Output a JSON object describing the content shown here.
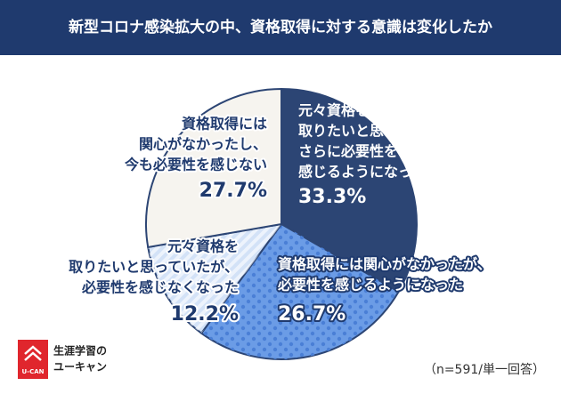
{
  "chart_data": {
    "type": "pie",
    "title": "新型コロナ感染拡大の中、資格取得に対する意識は変化したか",
    "categories": [
      [
        "元々資格を",
        "取りたいと思っていたが、",
        "さらに必要性を",
        "感じるようになった"
      ],
      [
        "資格取得には関心がなかったが、",
        "必要性を感じるようになった"
      ],
      [
        "元々資格を",
        "取りたいと思っていたが、",
        "必要性を感じなくなった"
      ],
      [
        "資格取得には",
        "関心がなかったし、",
        "今も必要性を感じない"
      ]
    ],
    "values": [
      33.3,
      26.7,
      12.2,
      27.7
    ],
    "value_labels": [
      "33.3%",
      "26.7%",
      "12.2%",
      "27.7%"
    ],
    "colors": [
      "#2c4574",
      "#6b9ce6",
      "#d3e2f7",
      "#f6f4ef"
    ],
    "note": "（n=591/単一回答）",
    "logo": {
      "brand": "U-CAN",
      "lines": [
        "生涯学習の",
        "ユーキャン"
      ]
    }
  }
}
